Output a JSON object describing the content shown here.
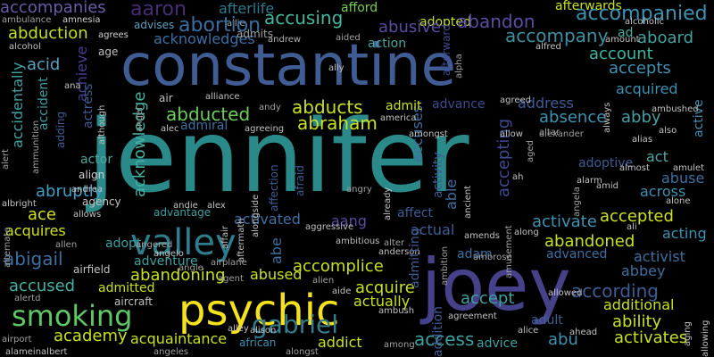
{
  "background": "#000000",
  "palette": {
    "deep_purple": "#440154",
    "indigo": "#3b528b",
    "blue": "#31688e",
    "teal": "#21918c",
    "sea_green": "#35b779",
    "light_green": "#90d743",
    "yellow": "#fde725"
  },
  "words": [
    {
      "text": "jennifer",
      "color": "#2a8a8a"
    },
    {
      "text": "constantine",
      "color": "#3f5c93"
    },
    {
      "text": "joey",
      "color": "#46428a"
    },
    {
      "text": "psychic",
      "color": "#f4e21d"
    },
    {
      "text": "valley",
      "color": "#2e7d8c"
    },
    {
      "text": "smoking",
      "color": "#5fc665"
    },
    {
      "text": "gabriel",
      "color": "#367a8d"
    },
    {
      "text": "accompanies",
      "color": "#6b5aa5"
    },
    {
      "text": "aaron",
      "color": "#482b75"
    },
    {
      "text": "afterlife",
      "color": "#2f7a8e"
    },
    {
      "text": "afford",
      "color": "#75d054"
    },
    {
      "text": "afterwards",
      "color": "#c9e020"
    },
    {
      "text": "ambulance",
      "color": "#a0a0a0"
    },
    {
      "text": "amnesia",
      "color": "#d0d0d0"
    },
    {
      "text": "advises",
      "color": "#5fa0c0"
    },
    {
      "text": "allie",
      "color": "#b0b0b0"
    },
    {
      "text": "abortion",
      "color": "#3b6ea0"
    },
    {
      "text": "accusing",
      "color": "#47b6a0"
    },
    {
      "text": "adopted",
      "color": "#c5df30"
    },
    {
      "text": "abandon",
      "color": "#5c4ca0"
    },
    {
      "text": "accompanied",
      "color": "#3f91b0"
    },
    {
      "text": "alcoholic",
      "color": "#c0c0c0"
    },
    {
      "text": "abduction",
      "color": "#c2df23"
    },
    {
      "text": "agrees",
      "color": "#d0d0d0"
    },
    {
      "text": "acknowledges",
      "color": "#3f6fa5"
    },
    {
      "text": "admits",
      "color": "#a0a0a0"
    },
    {
      "text": "abusive",
      "color": "#5a4aa0"
    },
    {
      "text": "accompany",
      "color": "#3f8fa0"
    },
    {
      "text": "aboard",
      "color": "#46a0a0"
    },
    {
      "text": "alcohol",
      "color": "#c0c0c0"
    },
    {
      "text": "andrew",
      "color": "#b0b0b0"
    },
    {
      "text": "aided",
      "color": "#a0a0a0"
    },
    {
      "text": "action",
      "color": "#4ea6a0"
    },
    {
      "text": "afterward",
      "color": "#3f4a8f"
    },
    {
      "text": "alfred",
      "color": "#c0c0c0"
    },
    {
      "text": "amount",
      "color": "#c0c0c0"
    },
    {
      "text": "ad",
      "color": "#45b0a0"
    },
    {
      "text": "account",
      "color": "#3bb5a0"
    },
    {
      "text": "acid",
      "color": "#5aa0c0"
    },
    {
      "text": "achieve",
      "color": "#463e8f"
    },
    {
      "text": "age",
      "color": "#c0c0c0"
    },
    {
      "text": "accepts",
      "color": "#3f91b0"
    },
    {
      "text": "accidentally",
      "color": "#42a0a0"
    },
    {
      "text": "acquired",
      "color": "#3f91b0"
    },
    {
      "text": "abducted",
      "color": "#6ecc5a"
    },
    {
      "text": "abducts",
      "color": "#c9e020"
    },
    {
      "text": "advance",
      "color": "#3f4a8f"
    },
    {
      "text": "address",
      "color": "#3f5c93"
    },
    {
      "text": "accident",
      "color": "#3fa0a0"
    },
    {
      "text": "actress",
      "color": "#3f5c93"
    },
    {
      "text": "acknowledge",
      "color": "#46b0a0"
    },
    {
      "text": "admiral",
      "color": "#3f6fa0"
    },
    {
      "text": "abraham",
      "color": "#c9e020"
    },
    {
      "text": "accuses",
      "color": "#3f6fa0"
    },
    {
      "text": "activity",
      "color": "#3f5c93"
    },
    {
      "text": "absence",
      "color": "#3f91b0"
    },
    {
      "text": "abby",
      "color": "#46a0a0"
    },
    {
      "text": "active",
      "color": "#3f91b0"
    },
    {
      "text": "also",
      "color": "#c0c0c0"
    },
    {
      "text": "adding",
      "color": "#3f5c93"
    },
    {
      "text": "actor",
      "color": "#4ea6a0"
    },
    {
      "text": "act",
      "color": "#4ea6a0"
    },
    {
      "text": "adoptive",
      "color": "#3f5c93"
    },
    {
      "text": "abuse",
      "color": "#3f6fa0"
    },
    {
      "text": "across",
      "color": "#3f91b0"
    },
    {
      "text": "abruptly",
      "color": "#3fa0c0"
    },
    {
      "text": "alliance",
      "color": "#c0c0c0"
    },
    {
      "text": "affection",
      "color": "#3f5c93"
    },
    {
      "text": "afraid",
      "color": "#3f5c93"
    },
    {
      "text": "accepting",
      "color": "#3f4a8f"
    },
    {
      "text": "able",
      "color": "#3f6fa0"
    },
    {
      "text": "align",
      "color": "#d0d0d0"
    },
    {
      "text": "andrea",
      "color": "#c0c0c0"
    },
    {
      "text": "agency",
      "color": "#c0c0c0"
    },
    {
      "text": "ace",
      "color": "#d0e020"
    },
    {
      "text": "activated",
      "color": "#3f6fa0"
    },
    {
      "text": "aang",
      "color": "#5a4aa0"
    },
    {
      "text": "accepted",
      "color": "#d0e020"
    },
    {
      "text": "activate",
      "color": "#3f91b0"
    },
    {
      "text": "advantage",
      "color": "#3fa0a0"
    },
    {
      "text": "affect",
      "color": "#3f5c93"
    },
    {
      "text": "acquires",
      "color": "#d0e020"
    },
    {
      "text": "abe",
      "color": "#3f6fa0"
    },
    {
      "text": "accomplice",
      "color": "#c9e020"
    },
    {
      "text": "abused",
      "color": "#c9e020"
    },
    {
      "text": "actual",
      "color": "#3f5c93"
    },
    {
      "text": "adam",
      "color": "#3f6fa0"
    },
    {
      "text": "abandoned",
      "color": "#c9e020"
    },
    {
      "text": "acting",
      "color": "#3f91b0"
    },
    {
      "text": "abigail",
      "color": "#3f6fa0"
    },
    {
      "text": "adopt",
      "color": "#3fa0a0"
    },
    {
      "text": "adventure",
      "color": "#3fa0a0"
    },
    {
      "text": "abandoning",
      "color": "#c9e020"
    },
    {
      "text": "advanced",
      "color": "#3f6fa0"
    },
    {
      "text": "activist",
      "color": "#3f6fa0"
    },
    {
      "text": "abbey",
      "color": "#3f6fa0"
    },
    {
      "text": "accused",
      "color": "#46b0a0"
    },
    {
      "text": "admitted",
      "color": "#c9e020"
    },
    {
      "text": "acquire",
      "color": "#c9e020"
    },
    {
      "text": "accept",
      "color": "#3fa0a0"
    },
    {
      "text": "according",
      "color": "#3f5c93"
    },
    {
      "text": "additional",
      "color": "#c9e020"
    },
    {
      "text": "actually",
      "color": "#c9e020"
    },
    {
      "text": "ability",
      "color": "#c9e020"
    },
    {
      "text": "academy",
      "color": "#c9e020"
    },
    {
      "text": "acquaintance",
      "color": "#c9e020"
    },
    {
      "text": "african",
      "color": "#3f91b0"
    },
    {
      "text": "addict",
      "color": "#c9e020"
    },
    {
      "text": "access",
      "color": "#3fa0a0"
    },
    {
      "text": "abu",
      "color": "#3f91b0"
    },
    {
      "text": "activates",
      "color": "#c9e020"
    },
    {
      "text": "adult",
      "color": "#3f5c93"
    },
    {
      "text": "advice",
      "color": "#3fa0a0"
    },
    {
      "text": "aircraft",
      "color": "#c0c0c0"
    },
    {
      "text": "airfield",
      "color": "#c0c0c0"
    },
    {
      "text": "alertd",
      "color": "#a0a0a0"
    },
    {
      "text": "airport",
      "color": "#a0a0a0"
    },
    {
      "text": "alameinalbert",
      "color": "#c0c0c0"
    },
    {
      "text": "anderson",
      "color": "#c0c0c0"
    },
    {
      "text": "alison",
      "color": "#c0c0c0"
    },
    {
      "text": "alley",
      "color": "#c0c0c0"
    },
    {
      "text": "alice",
      "color": "#c0c0c0"
    },
    {
      "text": "ahead",
      "color": "#c0c0c0"
    },
    {
      "text": "among",
      "color": "#a0a0a0"
    },
    {
      "text": "agreement",
      "color": "#c0c0c0"
    },
    {
      "text": "ambush",
      "color": "#c0c0c0"
    },
    {
      "text": "allowed",
      "color": "#c0c0c0"
    },
    {
      "text": "amends",
      "color": "#c0c0c0"
    },
    {
      "text": "ambrose",
      "color": "#a0a0a0"
    },
    {
      "text": "amid",
      "color": "#c0c0c0"
    },
    {
      "text": "amulet",
      "color": "#c0c0c0"
    },
    {
      "text": "almost",
      "color": "#c0c0c0"
    },
    {
      "text": "alarm",
      "color": "#c0c0c0"
    },
    {
      "text": "alone",
      "color": "#c0c0c0"
    },
    {
      "text": "ali",
      "color": "#c0c0c0"
    },
    {
      "text": "allows",
      "color": "#c0c0c0"
    },
    {
      "text": "albright",
      "color": "#c0c0c0"
    },
    {
      "text": "allen",
      "color": "#a0a0a0"
    },
    {
      "text": "alien",
      "color": "#a0a0a0"
    },
    {
      "text": "aide",
      "color": "#c0c0c0"
    },
    {
      "text": "agent",
      "color": "#a0a0a0"
    },
    {
      "text": "airplane",
      "color": "#a0a0a0"
    },
    {
      "text": "alter",
      "color": "#a0a0a0"
    },
    {
      "text": "ambitious",
      "color": "#c0c0c0"
    },
    {
      "text": "aggressive",
      "color": "#c0c0c0"
    },
    {
      "text": "angelo",
      "color": "#c0c0c0"
    },
    {
      "text": "andie",
      "color": "#c0c0c0"
    },
    {
      "text": "alex",
      "color": "#c0c0c0"
    },
    {
      "text": "affair",
      "color": "#c0c0c0"
    },
    {
      "text": "aftermath",
      "color": "#c0c0c0"
    },
    {
      "text": "alongside",
      "color": "#c0c0c0"
    },
    {
      "text": "already",
      "color": "#c0c0c0"
    },
    {
      "text": "amongst",
      "color": "#c0c0c0"
    },
    {
      "text": "allow",
      "color": "#c0c0c0"
    },
    {
      "text": "alexander",
      "color": "#a0a0a0"
    },
    {
      "text": "alias",
      "color": "#c0c0c0"
    },
    {
      "text": "agreeing",
      "color": "#c0c0c0"
    },
    {
      "text": "alec",
      "color": "#c0c0c0"
    },
    {
      "text": "air",
      "color": "#c0c0c0"
    },
    {
      "text": "andy",
      "color": "#a0a0a0"
    },
    {
      "text": "agreed",
      "color": "#c0c0c0"
    },
    {
      "text": "altar",
      "color": "#a0a0a0"
    },
    {
      "text": "america",
      "color": "#c0c0c0"
    },
    {
      "text": "angel",
      "color": "#a0a0a0"
    },
    {
      "text": "ally",
      "color": "#c0c0c0"
    },
    {
      "text": "ambushed",
      "color": "#c0c0c0"
    },
    {
      "text": "always",
      "color": "#c0c0c0"
    },
    {
      "text": "aging",
      "color": "#c0c0c0"
    },
    {
      "text": "allowing",
      "color": "#c0c0c0"
    },
    {
      "text": "alternate",
      "color": "#a0a0a0"
    },
    {
      "text": "ammunition",
      "color": "#a0a0a0"
    },
    {
      "text": "alert",
      "color": "#a0a0a0"
    },
    {
      "text": "although",
      "color": "#c0c0c0"
    },
    {
      "text": "ana",
      "color": "#c0c0c0"
    },
    {
      "text": "admit",
      "color": "#c9e020"
    },
    {
      "text": "admitting",
      "color": "#3f5c93"
    },
    {
      "text": "addition",
      "color": "#3f5c93"
    },
    {
      "text": "ambition",
      "color": "#a0a0a0"
    },
    {
      "text": "ancient",
      "color": "#c0c0c0"
    },
    {
      "text": "angela",
      "color": "#a0a0a0"
    },
    {
      "text": "aged",
      "color": "#a0a0a0"
    },
    {
      "text": "ah",
      "color": "#c0c0c0"
    },
    {
      "text": "amusement",
      "color": "#a0a0a0"
    },
    {
      "text": "alpha",
      "color": "#a0a0a0"
    },
    {
      "text": "angered",
      "color": "#a0a0a0"
    },
    {
      "text": "angle",
      "color": "#a0a0a0"
    },
    {
      "text": "along",
      "color": "#c0c0c0"
    },
    {
      "text": "angry",
      "color": "#a0a0a0"
    },
    {
      "text": "angeles",
      "color": "#a0a0a0"
    },
    {
      "text": "alongst",
      "color": "#a0a0a0"
    }
  ]
}
